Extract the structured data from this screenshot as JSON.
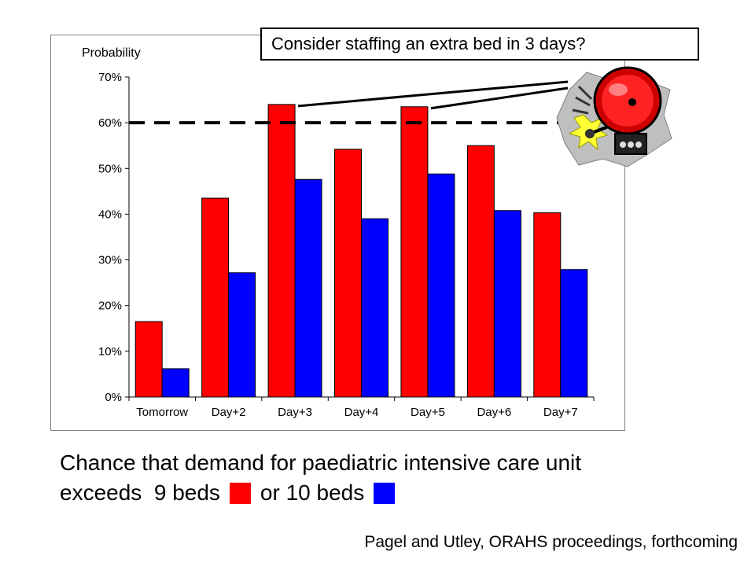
{
  "chart_data": {
    "type": "bar",
    "categories": [
      "Tomorrow",
      "Day+2",
      "Day+3",
      "Day+4",
      "Day+5",
      "Day+6",
      "Day+7"
    ],
    "series": [
      {
        "name": "9 beds",
        "color": "#ff0000",
        "values": [
          16.5,
          43.5,
          64.0,
          54.2,
          63.5,
          55.0,
          40.3
        ]
      },
      {
        "name": "10 beds",
        "color": "#0000ff",
        "values": [
          6.2,
          27.2,
          47.6,
          39.0,
          48.8,
          40.8,
          27.9
        ]
      }
    ],
    "ylabel": "Probability",
    "ylim": [
      0,
      70
    ],
    "yticks": [
      "0%",
      "10%",
      "20%",
      "30%",
      "40%",
      "50%",
      "60%",
      "70%"
    ],
    "threshold": 60,
    "grid": false,
    "legend": "caption"
  },
  "callout": {
    "text": "Consider staffing an extra bed in 3 days?"
  },
  "caption": {
    "line1": "Chance that demand for paediatric intensive care unit",
    "line2_prefix": "exceeds  9 beds",
    "line2_middle": "or 10 beds"
  },
  "citation": "Pagel and Utley, ORAHS proceedings, forthcoming",
  "icons": {
    "alarm": "alarm-bell-icon"
  }
}
